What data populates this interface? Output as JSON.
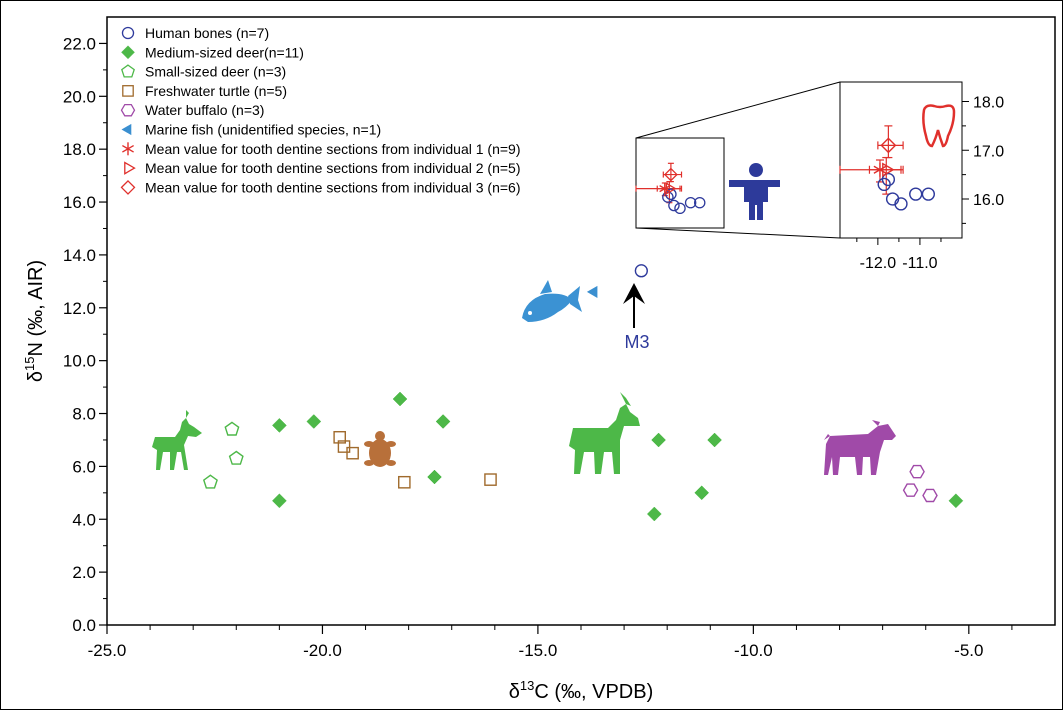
{
  "chart_data": {
    "type": "scatter",
    "xlabel": "δ13C (‰, VPDB)",
    "ylabel": "δ15N (‰, AIR)",
    "xlabel_parts": {
      "delta": "δ",
      "sup": "13",
      "rest": "C (‰, VPDB)"
    },
    "ylabel_parts": {
      "delta": "δ",
      "sup": "15",
      "rest": "N (‰, AIR)"
    },
    "xlim": [
      -25.0,
      -3.0
    ],
    "ylim": [
      0.0,
      23.0
    ],
    "x_ticks": [
      "-25.0",
      "-20.0",
      "-15.0",
      "-10.0",
      "-5.0"
    ],
    "x_tick_values": [
      -25,
      -20,
      -15,
      -10,
      -5
    ],
    "y_ticks": [
      "0.0",
      "2.0",
      "4.0",
      "6.0",
      "8.0",
      "10.0",
      "12.0",
      "14.0",
      "16.0",
      "18.0",
      "20.0",
      "22.0"
    ],
    "y_tick_values": [
      0,
      2,
      4,
      6,
      8,
      10,
      12,
      14,
      16,
      18,
      20,
      22
    ],
    "grid": false,
    "legend_position": "top-left",
    "series": [
      {
        "name": "Human bones (n=7)",
        "marker": "circle-open",
        "color": "#2e3a9c",
        "points": [
          [
            -12.6,
            13.4
          ],
          [
            -11.85,
            16.3
          ],
          [
            -11.65,
            16.0
          ],
          [
            -11.45,
            15.9
          ],
          [
            -11.1,
            16.1
          ],
          [
            -10.8,
            16.1
          ],
          [
            -11.75,
            16.4
          ]
        ]
      },
      {
        "name": "Medium-sized deer(n=11)",
        "marker": "diamond-filled",
        "color": "#4db848",
        "points": [
          [
            -21.0,
            7.55
          ],
          [
            -20.2,
            7.7
          ],
          [
            -18.2,
            8.55
          ],
          [
            -17.2,
            7.7
          ],
          [
            -17.4,
            5.6
          ],
          [
            -21.0,
            4.7
          ],
          [
            -12.2,
            7.0
          ],
          [
            -10.9,
            7.0
          ],
          [
            -11.2,
            5.0
          ],
          [
            -12.3,
            4.2
          ],
          [
            -5.3,
            4.7
          ]
        ]
      },
      {
        "name": "Small-sized deer (n=3)",
        "marker": "pentagon-open",
        "color": "#4db848",
        "points": [
          [
            -22.1,
            7.4
          ],
          [
            -22.0,
            6.3
          ],
          [
            -22.6,
            5.4
          ]
        ]
      },
      {
        "name": "Freshwater turtle (n=5)",
        "marker": "square-open",
        "color": "#a06a2c",
        "points": [
          [
            -19.6,
            7.1
          ],
          [
            -19.5,
            6.75
          ],
          [
            -19.3,
            6.5
          ],
          [
            -18.1,
            5.4
          ],
          [
            -16.1,
            5.5
          ]
        ]
      },
      {
        "name": "Water buffalo (n=3)",
        "marker": "hexagon-open",
        "color": "#a04aa8",
        "points": [
          [
            -6.2,
            5.8
          ],
          [
            -6.35,
            5.1
          ],
          [
            -5.9,
            4.9
          ]
        ]
      },
      {
        "name": "Marine fish (unidentified species, n=1)",
        "marker": "triangle-left-filled",
        "color": "#3a8fd0",
        "points": [
          [
            -13.7,
            12.6
          ]
        ]
      },
      {
        "name": "Mean value for tooth dentine sections from individual 1 (n=9)",
        "marker": "asterisk",
        "color": "#e0302c",
        "points": [
          [
            -11.95,
            16.6
          ]
        ]
      },
      {
        "name": "Mean value for tooth dentine sections from individual 2 (n=5)",
        "marker": "triangle-right-open",
        "color": "#e0302c",
        "points": [
          [
            -11.8,
            16.6
          ]
        ]
      },
      {
        "name": "Mean value for tooth dentine sections from individual 3 (n=6)",
        "marker": "diamond-open",
        "color": "#e0302c",
        "points": [
          [
            -11.75,
            17.1
          ]
        ]
      }
    ],
    "annotations": [
      {
        "text": "M3",
        "x": -12.6,
        "y": 11.0,
        "color": "#2e3a9c"
      }
    ],
    "inset": {
      "xlim": [
        -12.9,
        -10.0
      ],
      "ylim": [
        15.2,
        18.4
      ],
      "x_ticks": [
        "-12.0",
        "-11.0"
      ],
      "x_tick_values": [
        -12.0,
        -11.0
      ],
      "y_ticks": [
        "16.0",
        "17.0",
        "18.0"
      ],
      "y_tick_values": [
        16.0,
        17.0,
        18.0
      ],
      "error_bars": [
        {
          "x": -11.95,
          "y": 16.6,
          "xerr": [
            0.95,
            0.5
          ],
          "yerr": [
            0.25,
            0.2
          ]
        },
        {
          "x": -11.8,
          "y": 16.6,
          "xerr": [
            0.4,
            0.4
          ],
          "yerr": [
            0.5,
            0.25
          ]
        },
        {
          "x": -11.75,
          "y": 17.1,
          "xerr": [
            0.25,
            0.35
          ],
          "yerr": [
            0.25,
            0.4
          ]
        }
      ]
    }
  },
  "colors": {
    "human": "#2e3a9c",
    "deer": "#4db848",
    "turtle": "#a06a2c",
    "buffalo": "#a04aa8",
    "fish": "#3a8fd0",
    "tooth_means": "#e0302c",
    "human_icon": "#2d3a9a",
    "fish_icon": "#3b92d3",
    "turtle_icon": "#b8703a"
  },
  "icons": [
    "antelope-icon",
    "turtle-icon",
    "fish-icon",
    "buffalo-icon",
    "human-icon",
    "tooth-icon",
    "arrow-up-icon"
  ]
}
